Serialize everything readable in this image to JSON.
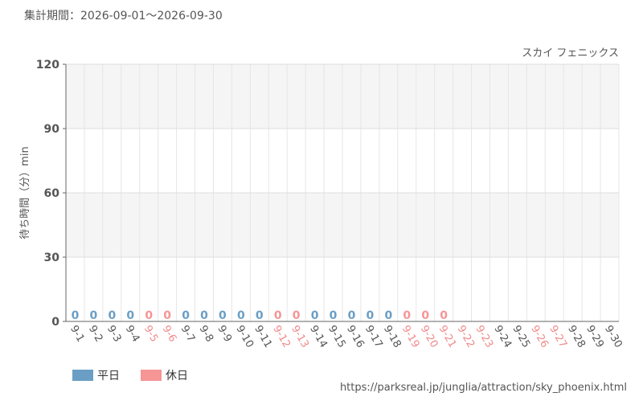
{
  "period": "集計期間：2026-09-01～2026-09-30",
  "url": "https://parksreal.jp/junglia/attraction/sky_phoenix.html",
  "chart_data": {
    "type": "bar",
    "title": "スカイ フェニックス",
    "y_label": "待ち時間（分）min",
    "categories": [
      "9-1",
      "9-2",
      "9-3",
      "9-4",
      "9-5",
      "9-6",
      "9-7",
      "9-8",
      "9-9",
      "9-10",
      "9-11",
      "9-12",
      "9-13",
      "9-14",
      "9-15",
      "9-16",
      "9-17",
      "9-18",
      "9-19",
      "9-20",
      "9-21",
      "9-22",
      "9-23",
      "9-24",
      "9-25",
      "9-26",
      "9-27",
      "9-28",
      "9-29",
      "9-30"
    ],
    "category_colors": [
      "#555",
      "#555",
      "#555",
      "#555",
      "#f08a8a",
      "#f08a8a",
      "#555",
      "#555",
      "#555",
      "#555",
      "#555",
      "#f08a8a",
      "#f08a8a",
      "#555",
      "#555",
      "#555",
      "#555",
      "#555",
      "#f08a8a",
      "#f08a8a",
      "#f08a8a",
      "#f08a8a",
      "#f08a8a",
      "#555",
      "#555",
      "#f08a8a",
      "#f08a8a",
      "#555",
      "#555",
      "#555"
    ],
    "series": [
      {
        "name": "平日",
        "color": "#6a9ec5",
        "values": [
          0,
          0,
          0,
          0,
          null,
          null,
          0,
          0,
          0,
          0,
          0,
          null,
          null,
          0,
          0,
          0,
          0,
          0,
          null,
          null,
          null,
          null,
          null,
          null,
          null,
          null,
          null,
          null,
          null,
          null
        ]
      },
      {
        "name": "休日",
        "color": "#f59595",
        "values": [
          null,
          null,
          null,
          null,
          0,
          0,
          null,
          null,
          null,
          null,
          null,
          0,
          0,
          null,
          null,
          null,
          null,
          null,
          0,
          0,
          0,
          null,
          null,
          null,
          null,
          null,
          null,
          null,
          null,
          null
        ]
      }
    ],
    "ylim": [
      0,
      120
    ],
    "yticks": [
      0,
      30,
      60,
      90,
      120
    ],
    "grid": true
  }
}
